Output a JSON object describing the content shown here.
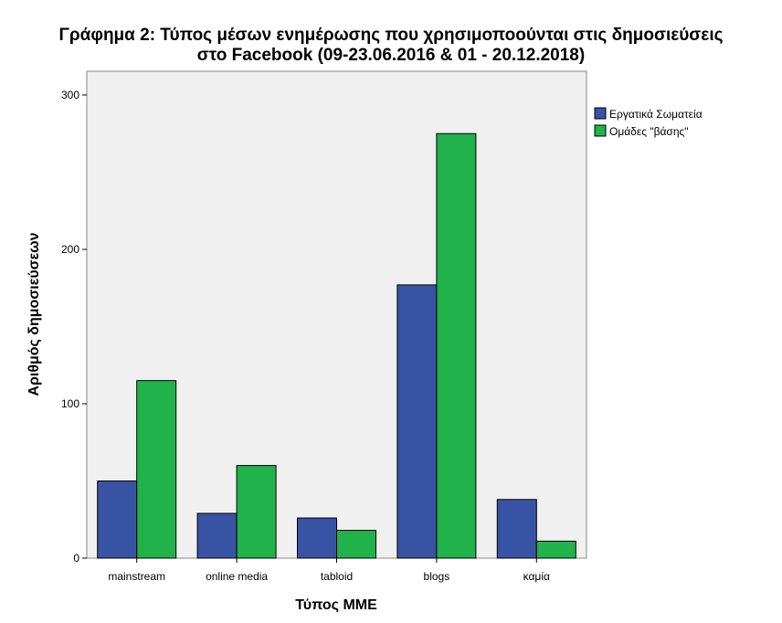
{
  "chart_data": {
    "type": "bar",
    "title_line1": "Γράφημα 2: Τύπος μέσων ενημέρωσης που χρησιμοποούνται στις δημοσιεύσεις",
    "title_line2": "στο Facebook (09-23.06.2016 & 01 - 20.12.2018)",
    "xlabel": "Τύπος ΜΜΕ",
    "ylabel": "Αριθμός δημοσιεύσεων",
    "categories": [
      "mainstream",
      "online media",
      "tabloid",
      "blogs",
      "καμία"
    ],
    "series": [
      {
        "name": "Εργατικά Σωματεία",
        "color": "#3953a4",
        "values": [
          50,
          29,
          26,
          177,
          38
        ]
      },
      {
        "name": "Ομάδες \"βάσης\"",
        "color": "#21b24b",
        "values": [
          115,
          60,
          18,
          275,
          11
        ]
      }
    ],
    "ylim": [
      0,
      300
    ],
    "yticks": [
      0,
      100,
      200,
      300
    ],
    "legend_position": "right",
    "plot_background": "#f0f0f0",
    "grid": false
  }
}
